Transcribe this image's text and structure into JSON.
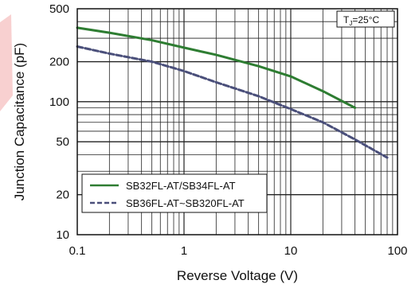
{
  "chart_data": {
    "type": "line",
    "title": "",
    "xlabel": "Reverse  Voltage (V)",
    "ylabel": "Junction Capacitance (pF)",
    "xscale": "log",
    "yscale": "log",
    "xlim": [
      0.1,
      100
    ],
    "ylim": [
      10,
      500
    ],
    "grid": true,
    "legend_position": "bottom-left",
    "x_ticks": [
      {
        "value": 0.1,
        "label": "0.1"
      },
      {
        "value": 1,
        "label": "1"
      },
      {
        "value": 10,
        "label": "10"
      },
      {
        "value": 100,
        "label": "100"
      }
    ],
    "y_ticks": [
      {
        "value": 10,
        "label": "10"
      },
      {
        "value": 20,
        "label": "20"
      },
      {
        "value": 50,
        "label": "50"
      },
      {
        "value": 100,
        "label": "100"
      },
      {
        "value": 200,
        "label": "200"
      },
      {
        "value": 500,
        "label": "500"
      }
    ],
    "annotation": {
      "prefix": "T",
      "sub": "J",
      "suffix": "=25°C"
    },
    "series": [
      {
        "name": "SB32FL-AT/SB34FL-AT",
        "color": "#2e7d32",
        "style": "solid",
        "points": [
          [
            0.1,
            360
          ],
          [
            0.2,
            330
          ],
          [
            0.5,
            290
          ],
          [
            1,
            255
          ],
          [
            2,
            225
          ],
          [
            5,
            185
          ],
          [
            10,
            155
          ],
          [
            20,
            120
          ],
          [
            40,
            90
          ]
        ]
      },
      {
        "name": "SB36FL-AT~SB320FL-AT",
        "color": "#4a4f7a",
        "style": "dashed",
        "points": [
          [
            0.1,
            260
          ],
          [
            0.2,
            230
          ],
          [
            0.5,
            200
          ],
          [
            1,
            170
          ],
          [
            2,
            140
          ],
          [
            5,
            110
          ],
          [
            10,
            88
          ],
          [
            20,
            70
          ],
          [
            40,
            52
          ],
          [
            80,
            38
          ]
        ]
      }
    ]
  }
}
